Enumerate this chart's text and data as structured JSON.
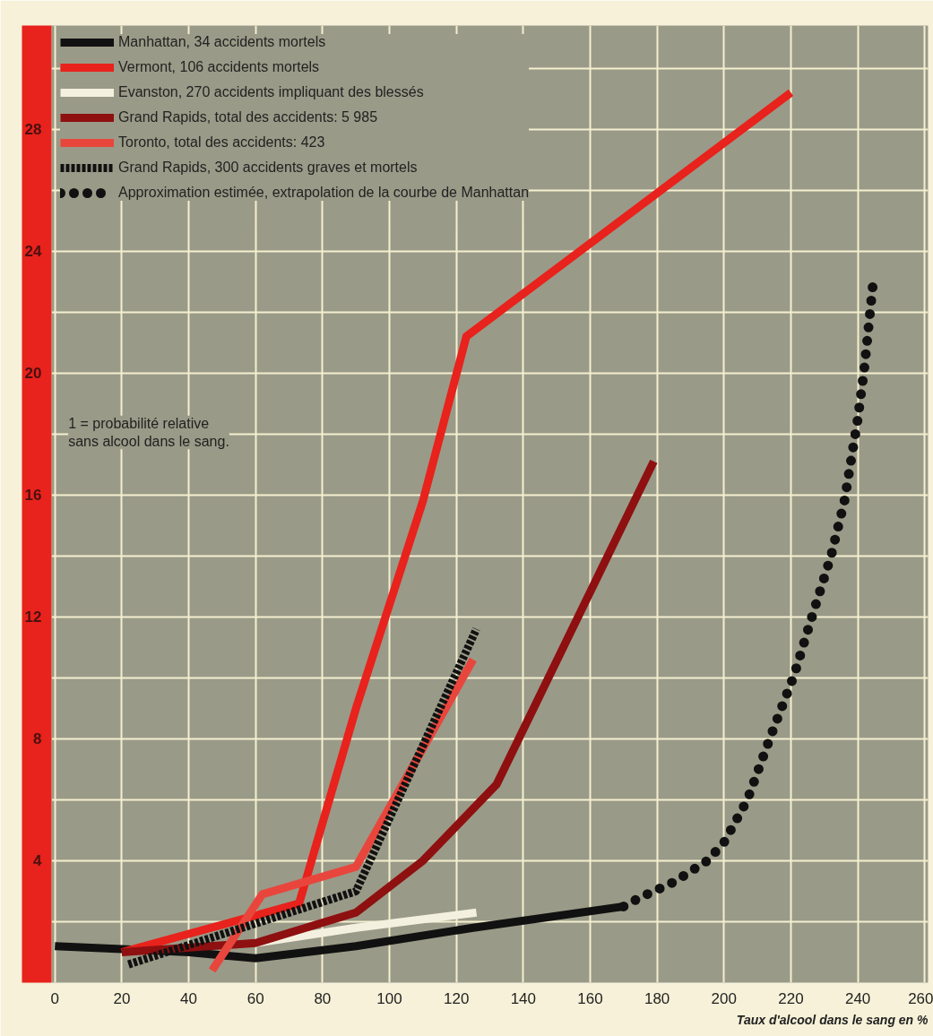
{
  "chart_data": {
    "type": "line",
    "xlabel": "Taux d'alcool dans le sang en %",
    "xlim": [
      -1,
      261
    ],
    "ylim": [
      0,
      31.4
    ],
    "xticks": [
      0,
      20,
      40,
      60,
      80,
      100,
      120,
      140,
      160,
      180,
      200,
      220,
      240,
      260
    ],
    "yticks": [
      {
        "value": 2,
        "label": null
      },
      4,
      {
        "value": 6,
        "label": null
      },
      8,
      {
        "value": 10,
        "label": null
      },
      12,
      {
        "value": 14,
        "label": null
      },
      16,
      {
        "value": 18,
        "label": null
      },
      20,
      {
        "value": 22,
        "label": null
      },
      24,
      {
        "value": 26,
        "label": null
      },
      28,
      {
        "value": 30,
        "label": null
      }
    ],
    "grid": true,
    "legend": "top left",
    "annotations": [
      "1 = probabilité relative\nsans alcool dans le sang."
    ],
    "series": [
      {
        "name": "Manhattan, 34 accidents mortels",
        "color": "#111111",
        "x": [
          0,
          20,
          40,
          60,
          90,
          125,
          170
        ],
        "values": [
          1.2,
          1.1,
          1.0,
          0.8,
          1.2,
          1.8,
          2.5
        ]
      },
      {
        "name": "Vermont, 106 accidents mortels",
        "color": "#e8221c",
        "x": [
          20,
          60,
          73,
          90,
          110,
          123,
          220
        ],
        "values": [
          1.0,
          2.2,
          2.6,
          9.0,
          15.8,
          21.2,
          29.2
        ]
      },
      {
        "name": "Evanston, 270 accidents impliquant des blessés",
        "color": "#f4f0e0",
        "x": [
          60,
          90,
          126
        ],
        "values": [
          1.3,
          1.8,
          2.3
        ]
      },
      {
        "name": "Grand Rapids, total des accidents: 5 985",
        "color": "#8e1010",
        "x": [
          20,
          60,
          90,
          110,
          132,
          179
        ],
        "values": [
          1.0,
          1.3,
          2.3,
          4.0,
          6.5,
          17.1
        ]
      },
      {
        "name": "Toronto, total des accidents: 423",
        "color": "#e8463c",
        "x": [
          47,
          62,
          90,
          125
        ],
        "values": [
          0.4,
          2.9,
          3.8,
          10.6
        ]
      },
      {
        "name": "Grand Rapids, 300 accidents graves et mortels",
        "color": "#111111",
        "line_style": "dashed",
        "x": [
          22,
          90,
          126
        ],
        "values": [
          0.6,
          3.0,
          11.6
        ]
      },
      {
        "name": "Approximation estimée, extrapolation de la courbe de Manhattan",
        "color": "#111111",
        "line_style": "dotted",
        "x": [
          170,
          175,
          185,
          195,
          200,
          207,
          214,
          221,
          226,
          232,
          236,
          240,
          242,
          244.5
        ],
        "values": [
          2.5,
          2.8,
          3.3,
          4.0,
          4.6,
          6.0,
          8.1,
          10.1,
          11.9,
          14.0,
          15.8,
          18.5,
          20.2,
          22.9
        ]
      }
    ]
  }
}
